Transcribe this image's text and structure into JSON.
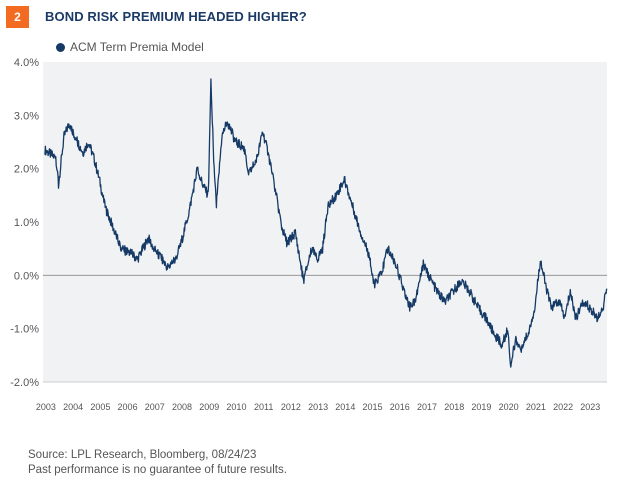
{
  "header": {
    "badge": "2",
    "title": "BOND RISK PREMIUM HEADED HIGHER?"
  },
  "footer": {
    "source": "Source: LPL Research, Bloomberg,  08/24/23",
    "disclaimer": "Past performance is no guarantee of future results."
  },
  "chart_data": {
    "type": "line",
    "title": "BOND RISK PREMIUM HEADED HIGHER?",
    "legend": {
      "position": "top-left",
      "entries": [
        "ACM Term Premia Model"
      ]
    },
    "colors": {
      "series": "#163a66",
      "plot_bg": "#f1f2f4",
      "zero_line": "#999999",
      "badge": "#f26b21"
    },
    "ylim": [
      -2.0,
      4.0
    ],
    "yticks": [
      "4.0%",
      "3.0%",
      "2.0%",
      "1.0%",
      "0.0%",
      "-1.0%",
      "-2.0%"
    ],
    "ytick_values": [
      4,
      3,
      2,
      1,
      0,
      -1,
      -2
    ],
    "xticks": [
      "2003",
      "2004",
      "2005",
      "2006",
      "2007",
      "2008",
      "2009",
      "2010",
      "2011",
      "2012",
      "2013",
      "2014",
      "2015",
      "2016",
      "2017",
      "2018",
      "2019",
      "2020",
      "2021",
      "2022",
      "2023"
    ],
    "xlim": [
      2002.93,
      2023.65
    ],
    "series": [
      {
        "name": "ACM Term Premia Model",
        "x": [
          2003.0,
          2003.4,
          2003.5,
          2003.7,
          2003.9,
          2004.2,
          2004.4,
          2004.6,
          2004.8,
          2005.0,
          2005.2,
          2005.5,
          2005.8,
          2006.2,
          2006.4,
          2006.6,
          2006.8,
          2007.0,
          2007.3,
          2007.5,
          2007.8,
          2008.0,
          2008.3,
          2008.6,
          2008.8,
          2009.0,
          2009.1,
          2009.2,
          2009.3,
          2009.5,
          2009.7,
          2010.0,
          2010.3,
          2010.5,
          2010.8,
          2011.0,
          2011.2,
          2011.5,
          2011.7,
          2011.9,
          2012.2,
          2012.5,
          2012.8,
          2013.0,
          2013.2,
          2013.4,
          2013.7,
          2014.0,
          2014.3,
          2014.6,
          2014.9,
          2015.1,
          2015.4,
          2015.6,
          2015.9,
          2016.2,
          2016.4,
          2016.6,
          2016.9,
          2017.1,
          2017.4,
          2017.7,
          2018.0,
          2018.3,
          2018.6,
          2018.9,
          2019.2,
          2019.5,
          2019.8,
          2020.0,
          2020.1,
          2020.3,
          2020.5,
          2020.8,
          2021.0,
          2021.2,
          2021.4,
          2021.6,
          2021.9,
          2022.1,
          2022.3,
          2022.5,
          2022.8,
          2023.0,
          2023.3,
          2023.5,
          2023.65
        ],
        "values": [
          2.35,
          2.2,
          1.7,
          2.6,
          2.85,
          2.5,
          2.3,
          2.5,
          2.2,
          1.8,
          1.3,
          0.9,
          0.5,
          0.4,
          0.3,
          0.5,
          0.7,
          0.5,
          0.3,
          0.15,
          0.3,
          0.6,
          1.2,
          2.0,
          1.7,
          1.5,
          3.6,
          2.2,
          1.3,
          2.6,
          2.9,
          2.5,
          2.4,
          1.9,
          2.2,
          2.7,
          2.3,
          1.5,
          0.9,
          0.6,
          0.8,
          -0.1,
          0.5,
          0.3,
          0.5,
          1.3,
          1.5,
          1.8,
          1.3,
          0.8,
          0.4,
          -0.2,
          0.1,
          0.5,
          0.2,
          -0.3,
          -0.6,
          -0.5,
          0.2,
          0.0,
          -0.3,
          -0.5,
          -0.3,
          -0.1,
          -0.3,
          -0.6,
          -0.8,
          -1.1,
          -1.3,
          -1.0,
          -1.7,
          -1.2,
          -1.4,
          -1.0,
          -0.6,
          0.3,
          -0.2,
          -0.6,
          -0.5,
          -0.8,
          -0.3,
          -0.8,
          -0.5,
          -0.6,
          -0.8,
          -0.6,
          -0.25
        ]
      }
    ]
  }
}
